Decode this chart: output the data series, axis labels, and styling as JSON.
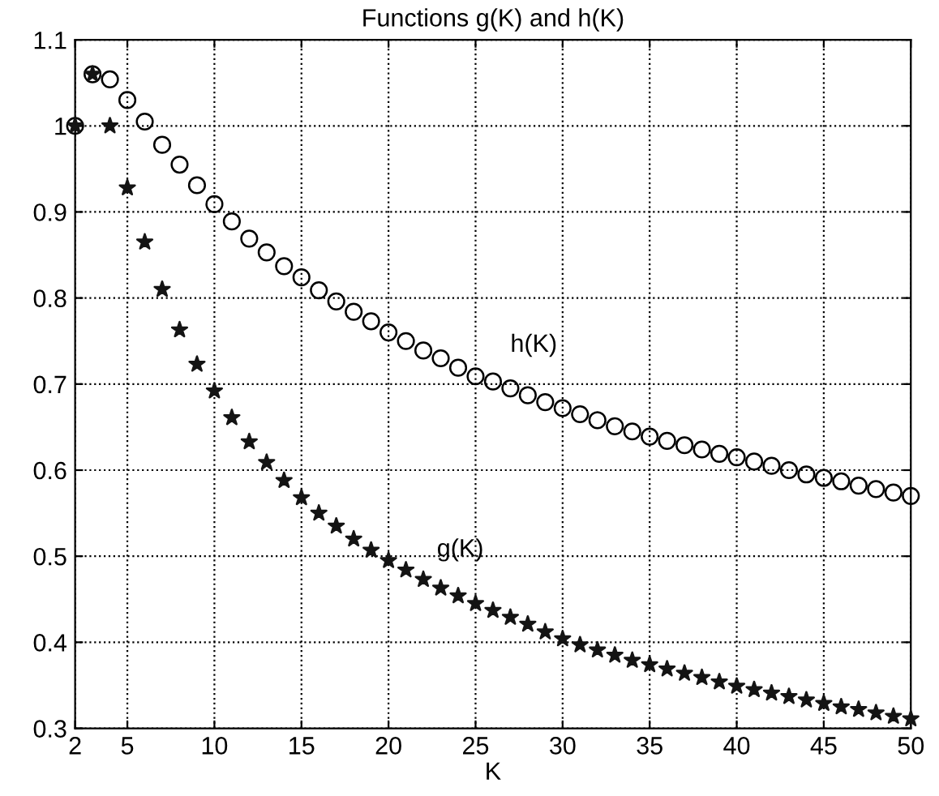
{
  "chart_data": {
    "type": "scatter",
    "title": "Functions g(K) and h(K)",
    "xlabel": "K",
    "x": [
      2,
      3,
      4,
      5,
      6,
      7,
      8,
      9,
      10,
      11,
      12,
      13,
      14,
      15,
      16,
      17,
      18,
      19,
      20,
      21,
      22,
      23,
      24,
      25,
      26,
      27,
      28,
      29,
      30,
      31,
      32,
      33,
      34,
      35,
      36,
      37,
      38,
      39,
      40,
      41,
      42,
      43,
      44,
      45,
      46,
      47,
      48,
      49,
      50
    ],
    "series": [
      {
        "name": "h(K)",
        "color": "#000000",
        "marker": "circle",
        "values": [
          1.0,
          1.06,
          1.054,
          1.03,
          1.005,
          0.978,
          0.955,
          0.931,
          0.909,
          0.889,
          0.869,
          0.853,
          0.837,
          0.824,
          0.809,
          0.796,
          0.784,
          0.773,
          0.76,
          0.75,
          0.739,
          0.73,
          0.719,
          0.709,
          0.703,
          0.695,
          0.687,
          0.679,
          0.672,
          0.665,
          0.658,
          0.651,
          0.645,
          0.639,
          0.634,
          0.629,
          0.624,
          0.619,
          0.615,
          0.61,
          0.605,
          0.6,
          0.595,
          0.591,
          0.587,
          0.582,
          0.578,
          0.574,
          0.57
        ]
      },
      {
        "name": "g(K)",
        "color": "#141414",
        "marker": "star",
        "values": [
          1.0,
          1.06,
          1.0,
          0.928,
          0.865,
          0.81,
          0.763,
          0.723,
          0.692,
          0.661,
          0.633,
          0.609,
          0.588,
          0.568,
          0.55,
          0.535,
          0.52,
          0.507,
          0.495,
          0.484,
          0.473,
          0.463,
          0.454,
          0.445,
          0.437,
          0.429,
          0.421,
          0.412,
          0.404,
          0.397,
          0.391,
          0.385,
          0.379,
          0.374,
          0.369,
          0.364,
          0.359,
          0.354,
          0.349,
          0.345,
          0.341,
          0.337,
          0.333,
          0.329,
          0.325,
          0.322,
          0.318,
          0.314,
          0.311
        ]
      }
    ],
    "xlim": [
      2,
      50
    ],
    "ylim": [
      0.3,
      1.1
    ],
    "xticks": [
      2,
      5,
      10,
      15,
      20,
      25,
      30,
      35,
      40,
      45,
      50
    ],
    "yticks": [
      0.3,
      0.4,
      0.5,
      0.6,
      0.7,
      0.8,
      0.9,
      1,
      1.1
    ],
    "grid": true,
    "line_style": "dotted"
  }
}
